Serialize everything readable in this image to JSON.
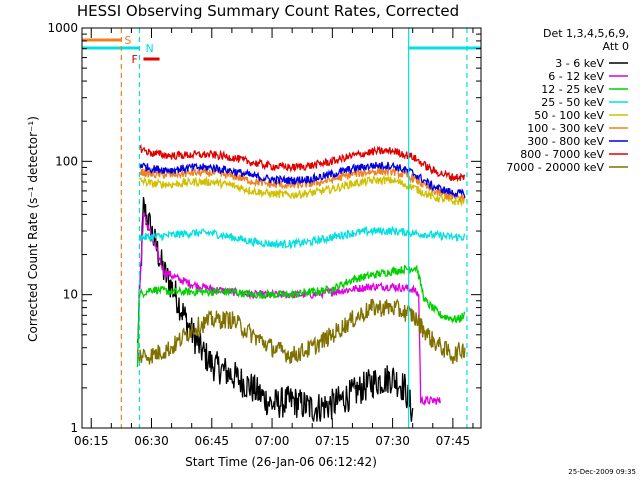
{
  "chart_data": {
    "type": "line",
    "title": "HESSI Observing Summary Count Rates, Corrected",
    "ylabel": "Corrected Count Rate (s⁻¹ detector⁻¹)",
    "xlabel": "Start Time (26-Jan-06 06:12:42)",
    "y_scale": "log",
    "ylim": [
      1,
      1000
    ],
    "xlim": [
      "06:12:42",
      "07:52:00"
    ],
    "y_ticks": [
      "1",
      "10",
      "100",
      "1000"
    ],
    "x_ticks": [
      "06:15",
      "06:30",
      "06:45",
      "07:00",
      "07:15",
      "07:30",
      "07:45"
    ],
    "stamp": "25-Dec-2009 09:35",
    "legend": {
      "placement": "top-right-outside",
      "header_line1": "Det 1,3,4,5,6,9,",
      "header_line2": "Att 0"
    },
    "flags": {
      "S": {
        "label": "S",
        "color": "#f08020",
        "start": "06:12:42",
        "end": "06:22:30"
      },
      "N": {
        "label": "N",
        "color": "#00e0e0",
        "intervals": [
          [
            "06:12:42",
            "06:27:00"
          ],
          [
            "07:34:00",
            "07:52:00"
          ]
        ]
      },
      "F": {
        "label": "F",
        "color": "#e00000",
        "start": "06:28:00",
        "end": "06:32:00"
      }
    },
    "vertical_lines": [
      {
        "time": "06:22:30",
        "color": "#f08020",
        "style": "dashed"
      },
      {
        "time": "06:27:00",
        "color": "#00e0e0",
        "style": "dashed"
      },
      {
        "time": "07:34:00",
        "color": "#00e0e0",
        "style": "solid"
      },
      {
        "time": "07:48:30",
        "color": "#00e0e0",
        "style": "dashed"
      }
    ],
    "series": [
      {
        "name": "3 - 6 keV",
        "color": "#000000",
        "points": [
          [
            "06:26:30",
            4
          ],
          [
            "06:28:00",
            45
          ],
          [
            "06:30:00",
            30
          ],
          [
            "06:33:00",
            15
          ],
          [
            "06:36:00",
            10
          ],
          [
            "06:39:00",
            6
          ],
          [
            "06:42:00",
            4
          ],
          [
            "06:45:00",
            3
          ],
          [
            "06:50:00",
            2.5
          ],
          [
            "06:55:00",
            2
          ],
          [
            "07:00:00",
            1.5
          ],
          [
            "07:05:00",
            1.6
          ],
          [
            "07:10:00",
            1.4
          ],
          [
            "07:15:00",
            1.5
          ],
          [
            "07:20:00",
            1.8
          ],
          [
            "07:25:00",
            2.2
          ],
          [
            "07:30:00",
            2.4
          ],
          [
            "07:33:00",
            2.0
          ],
          [
            "07:35:00",
            1.3
          ]
        ]
      },
      {
        "name": "6 - 12 keV",
        "color": "#e000e0",
        "points": [
          [
            "06:27:00",
            10
          ],
          [
            "06:28:00",
            40
          ],
          [
            "06:30:00",
            28
          ],
          [
            "06:33:00",
            15
          ],
          [
            "06:37:00",
            13
          ],
          [
            "06:40:00",
            12
          ],
          [
            "06:45:00",
            11
          ],
          [
            "06:50:00",
            10.5
          ],
          [
            "06:55:00",
            10
          ],
          [
            "07:00:00",
            10
          ],
          [
            "07:05:00",
            10
          ],
          [
            "07:10:00",
            10
          ],
          [
            "07:15:00",
            10.5
          ],
          [
            "07:20:00",
            11
          ],
          [
            "07:25:00",
            11.5
          ],
          [
            "07:30:00",
            11.5
          ],
          [
            "07:35:00",
            11
          ],
          [
            "07:36:30",
            10
          ],
          [
            "07:37:00",
            1.6
          ],
          [
            "07:42:00",
            1.6
          ]
        ]
      },
      {
        "name": "12 - 25 keV",
        "color": "#00d000",
        "points": [
          [
            "06:26:30",
            3
          ],
          [
            "06:27:00",
            10
          ],
          [
            "06:30:00",
            11
          ],
          [
            "06:35:00",
            10.5
          ],
          [
            "06:40:00",
            10.5
          ],
          [
            "06:45:00",
            10.5
          ],
          [
            "06:50:00",
            10.5
          ],
          [
            "06:55:00",
            10
          ],
          [
            "07:00:00",
            10
          ],
          [
            "07:05:00",
            10
          ],
          [
            "07:10:00",
            10.5
          ],
          [
            "07:15:00",
            11
          ],
          [
            "07:20:00",
            13
          ],
          [
            "07:25:00",
            14
          ],
          [
            "07:30:00",
            15
          ],
          [
            "07:36:00",
            16
          ],
          [
            "07:38:00",
            9
          ],
          [
            "07:42:00",
            7
          ],
          [
            "07:46:00",
            6.5
          ],
          [
            "07:48:00",
            7
          ]
        ]
      },
      {
        "name": "25 - 50 keV",
        "color": "#00e0e0",
        "points": [
          [
            "06:27:00",
            27
          ],
          [
            "06:30:00",
            27
          ],
          [
            "06:35:00",
            28
          ],
          [
            "06:40:00",
            29
          ],
          [
            "06:45:00",
            29
          ],
          [
            "06:50:00",
            27
          ],
          [
            "06:55:00",
            25
          ],
          [
            "07:00:00",
            24
          ],
          [
            "07:05:00",
            24
          ],
          [
            "07:10:00",
            25
          ],
          [
            "07:15:00",
            27
          ],
          [
            "07:20:00",
            29
          ],
          [
            "07:25:00",
            30
          ],
          [
            "07:30:00",
            30
          ],
          [
            "07:35:00",
            29
          ],
          [
            "07:40:00",
            28
          ],
          [
            "07:45:00",
            27
          ],
          [
            "07:48:00",
            27
          ]
        ]
      },
      {
        "name": "50 - 100 keV",
        "color": "#d0c000",
        "points": [
          [
            "06:27:00",
            72
          ],
          [
            "06:30:00",
            68
          ],
          [
            "06:35:00",
            67
          ],
          [
            "06:40:00",
            70
          ],
          [
            "06:45:00",
            70
          ],
          [
            "06:50:00",
            66
          ],
          [
            "06:55:00",
            60
          ],
          [
            "07:00:00",
            57
          ],
          [
            "07:05:00",
            56
          ],
          [
            "07:10:00",
            58
          ],
          [
            "07:15:00",
            62
          ],
          [
            "07:20:00",
            68
          ],
          [
            "07:25:00",
            72
          ],
          [
            "07:30:00",
            72
          ],
          [
            "07:35:00",
            64
          ],
          [
            "07:40:00",
            54
          ],
          [
            "07:45:00",
            50
          ],
          [
            "07:48:00",
            50
          ]
        ]
      },
      {
        "name": "100 - 300 keV",
        "color": "#f08020",
        "points": [
          [
            "06:27:00",
            84
          ],
          [
            "06:30:00",
            80
          ],
          [
            "06:35:00",
            79
          ],
          [
            "06:40:00",
            82
          ],
          [
            "06:45:00",
            82
          ],
          [
            "06:50:00",
            78
          ],
          [
            "06:55:00",
            71
          ],
          [
            "07:00:00",
            67
          ],
          [
            "07:05:00",
            66
          ],
          [
            "07:10:00",
            68
          ],
          [
            "07:15:00",
            73
          ],
          [
            "07:20:00",
            80
          ],
          [
            "07:25:00",
            84
          ],
          [
            "07:30:00",
            84
          ],
          [
            "07:35:00",
            75
          ],
          [
            "07:40:00",
            60
          ],
          [
            "07:45:00",
            54
          ],
          [
            "07:48:00",
            53
          ]
        ]
      },
      {
        "name": "300 - 800 keV",
        "color": "#0000e0",
        "points": [
          [
            "06:27:00",
            95
          ],
          [
            "06:30:00",
            88
          ],
          [
            "06:35:00",
            86
          ],
          [
            "06:40:00",
            90
          ],
          [
            "06:45:00",
            90
          ],
          [
            "06:50:00",
            85
          ],
          [
            "06:55:00",
            78
          ],
          [
            "07:00:00",
            73
          ],
          [
            "07:05:00",
            72
          ],
          [
            "07:10:00",
            74
          ],
          [
            "07:15:00",
            80
          ],
          [
            "07:20:00",
            88
          ],
          [
            "07:25:00",
            93
          ],
          [
            "07:30:00",
            93
          ],
          [
            "07:35:00",
            82
          ],
          [
            "07:40:00",
            65
          ],
          [
            "07:45:00",
            58
          ],
          [
            "07:48:00",
            57
          ]
        ]
      },
      {
        "name": "800 - 7000 keV",
        "color": "#e00000",
        "points": [
          [
            "06:27:00",
            125
          ],
          [
            "06:30:00",
            115
          ],
          [
            "06:35:00",
            110
          ],
          [
            "06:40:00",
            112
          ],
          [
            "06:45:00",
            112
          ],
          [
            "06:50:00",
            107
          ],
          [
            "06:55:00",
            98
          ],
          [
            "07:00:00",
            92
          ],
          [
            "07:05:00",
            90
          ],
          [
            "07:10:00",
            93
          ],
          [
            "07:15:00",
            100
          ],
          [
            "07:20:00",
            110
          ],
          [
            "07:25:00",
            118
          ],
          [
            "07:30:00",
            120
          ],
          [
            "07:35:00",
            108
          ],
          [
            "07:40:00",
            85
          ],
          [
            "07:45:00",
            76
          ],
          [
            "07:48:00",
            76
          ]
        ]
      },
      {
        "name": "7000 - 20000 keV",
        "color": "#807000",
        "points": [
          [
            "06:26:30",
            3.5
          ],
          [
            "06:30:00",
            3.5
          ],
          [
            "06:35:00",
            4
          ],
          [
            "06:40:00",
            5.5
          ],
          [
            "06:45:00",
            6.5
          ],
          [
            "06:50:00",
            6.5
          ],
          [
            "06:55:00",
            5
          ],
          [
            "07:00:00",
            4
          ],
          [
            "07:05:00",
            3.5
          ],
          [
            "07:10:00",
            4
          ],
          [
            "07:15:00",
            5
          ],
          [
            "07:20:00",
            6.5
          ],
          [
            "07:25:00",
            8
          ],
          [
            "07:30:00",
            8
          ],
          [
            "07:35:00",
            7
          ],
          [
            "07:40:00",
            4.5
          ],
          [
            "07:45:00",
            3.5
          ],
          [
            "07:48:00",
            4
          ]
        ]
      }
    ]
  }
}
